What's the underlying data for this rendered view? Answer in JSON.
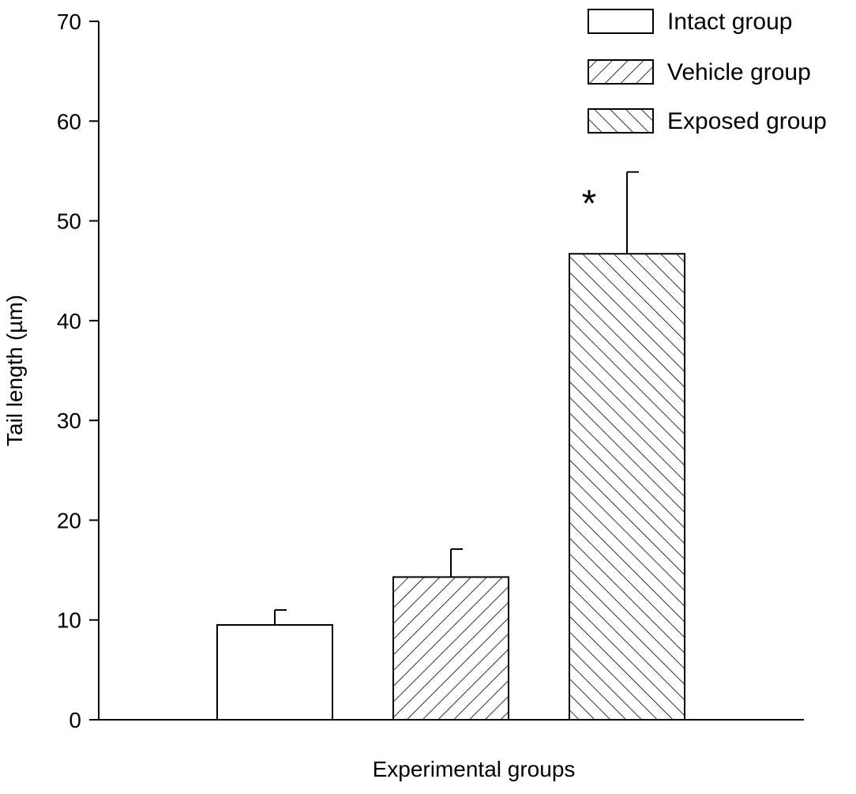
{
  "chart_data": {
    "type": "bar",
    "title": "",
    "xlabel": "Experimental groups",
    "ylabel": "Tail length (µm)",
    "ylim": [
      0,
      70
    ],
    "yticks": [
      0,
      10,
      20,
      30,
      40,
      50,
      60,
      70
    ],
    "grid": false,
    "legend_position": "top-right",
    "series": [
      {
        "name": "Intact group",
        "value": 9.5,
        "error": 1.5,
        "pattern": "none",
        "annotation": ""
      },
      {
        "name": "Vehicle group",
        "value": 14.3,
        "error": 2.8,
        "pattern": "forward-hatch",
        "annotation": ""
      },
      {
        "name": "Exposed group",
        "value": 46.7,
        "error": 8.2,
        "pattern": "back-hatch",
        "annotation": "*"
      }
    ]
  }
}
